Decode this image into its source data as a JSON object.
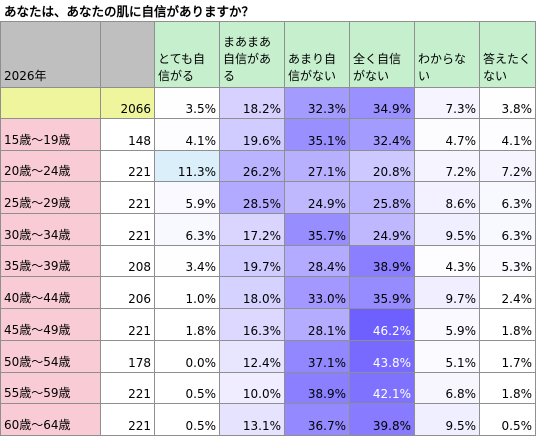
{
  "title": "あなたは、あなたの肌に自信がありますか？",
  "chart_data": {
    "type": "table",
    "year_label": "2026年",
    "columns": [
      "とても自信がる",
      "まあまあ自信がある",
      "あまり自信がない",
      "全く自信がない",
      "わからない",
      "答えたくない"
    ],
    "total": {
      "n": "2066",
      "values": [
        "3.5%",
        "18.2%",
        "32.3%",
        "34.9%",
        "7.3%",
        "3.8%"
      ]
    },
    "rows": [
      {
        "label": "15歳～19歳",
        "n": "148",
        "values": [
          "4.1%",
          "19.6%",
          "35.1%",
          "32.4%",
          "4.7%",
          "4.1%"
        ]
      },
      {
        "label": "20歳～24歳",
        "n": "221",
        "values": [
          "11.3%",
          "26.2%",
          "27.1%",
          "20.8%",
          "7.2%",
          "7.2%"
        ]
      },
      {
        "label": "25歳～29歳",
        "n": "221",
        "values": [
          "5.9%",
          "28.5%",
          "24.9%",
          "25.8%",
          "8.6%",
          "6.3%"
        ]
      },
      {
        "label": "30歳～34歳",
        "n": "221",
        "values": [
          "6.3%",
          "17.2%",
          "35.7%",
          "24.9%",
          "9.5%",
          "6.3%"
        ]
      },
      {
        "label": "35歳～39歳",
        "n": "208",
        "values": [
          "3.4%",
          "19.7%",
          "28.4%",
          "38.9%",
          "4.3%",
          "5.3%"
        ]
      },
      {
        "label": "40歳～44歳",
        "n": "206",
        "values": [
          "1.0%",
          "18.0%",
          "33.0%",
          "35.9%",
          "9.7%",
          "2.4%"
        ]
      },
      {
        "label": "45歳～49歳",
        "n": "221",
        "values": [
          "1.8%",
          "16.3%",
          "28.1%",
          "46.2%",
          "5.9%",
          "1.8%"
        ]
      },
      {
        "label": "50歳～54歳",
        "n": "178",
        "values": [
          "0.0%",
          "12.4%",
          "37.1%",
          "43.8%",
          "5.1%",
          "1.7%"
        ]
      },
      {
        "label": "55歳～59歳",
        "n": "221",
        "values": [
          "0.5%",
          "10.0%",
          "38.9%",
          "42.1%",
          "6.8%",
          "1.8%"
        ]
      },
      {
        "label": "60歳～64歳",
        "n": "221",
        "values": [
          "0.5%",
          "13.1%",
          "36.7%",
          "39.8%",
          "9.5%",
          "0.5%"
        ]
      }
    ]
  },
  "colors": {
    "header_gray": "#bfbfbf",
    "header_green": "#c6efce",
    "age_pink": "#f8cbd5",
    "total_yellow": "#eef59c",
    "heat_low": "#ffffff",
    "heat_high": "#6b5cff",
    "heat_low_accent": "#dbeffa"
  }
}
